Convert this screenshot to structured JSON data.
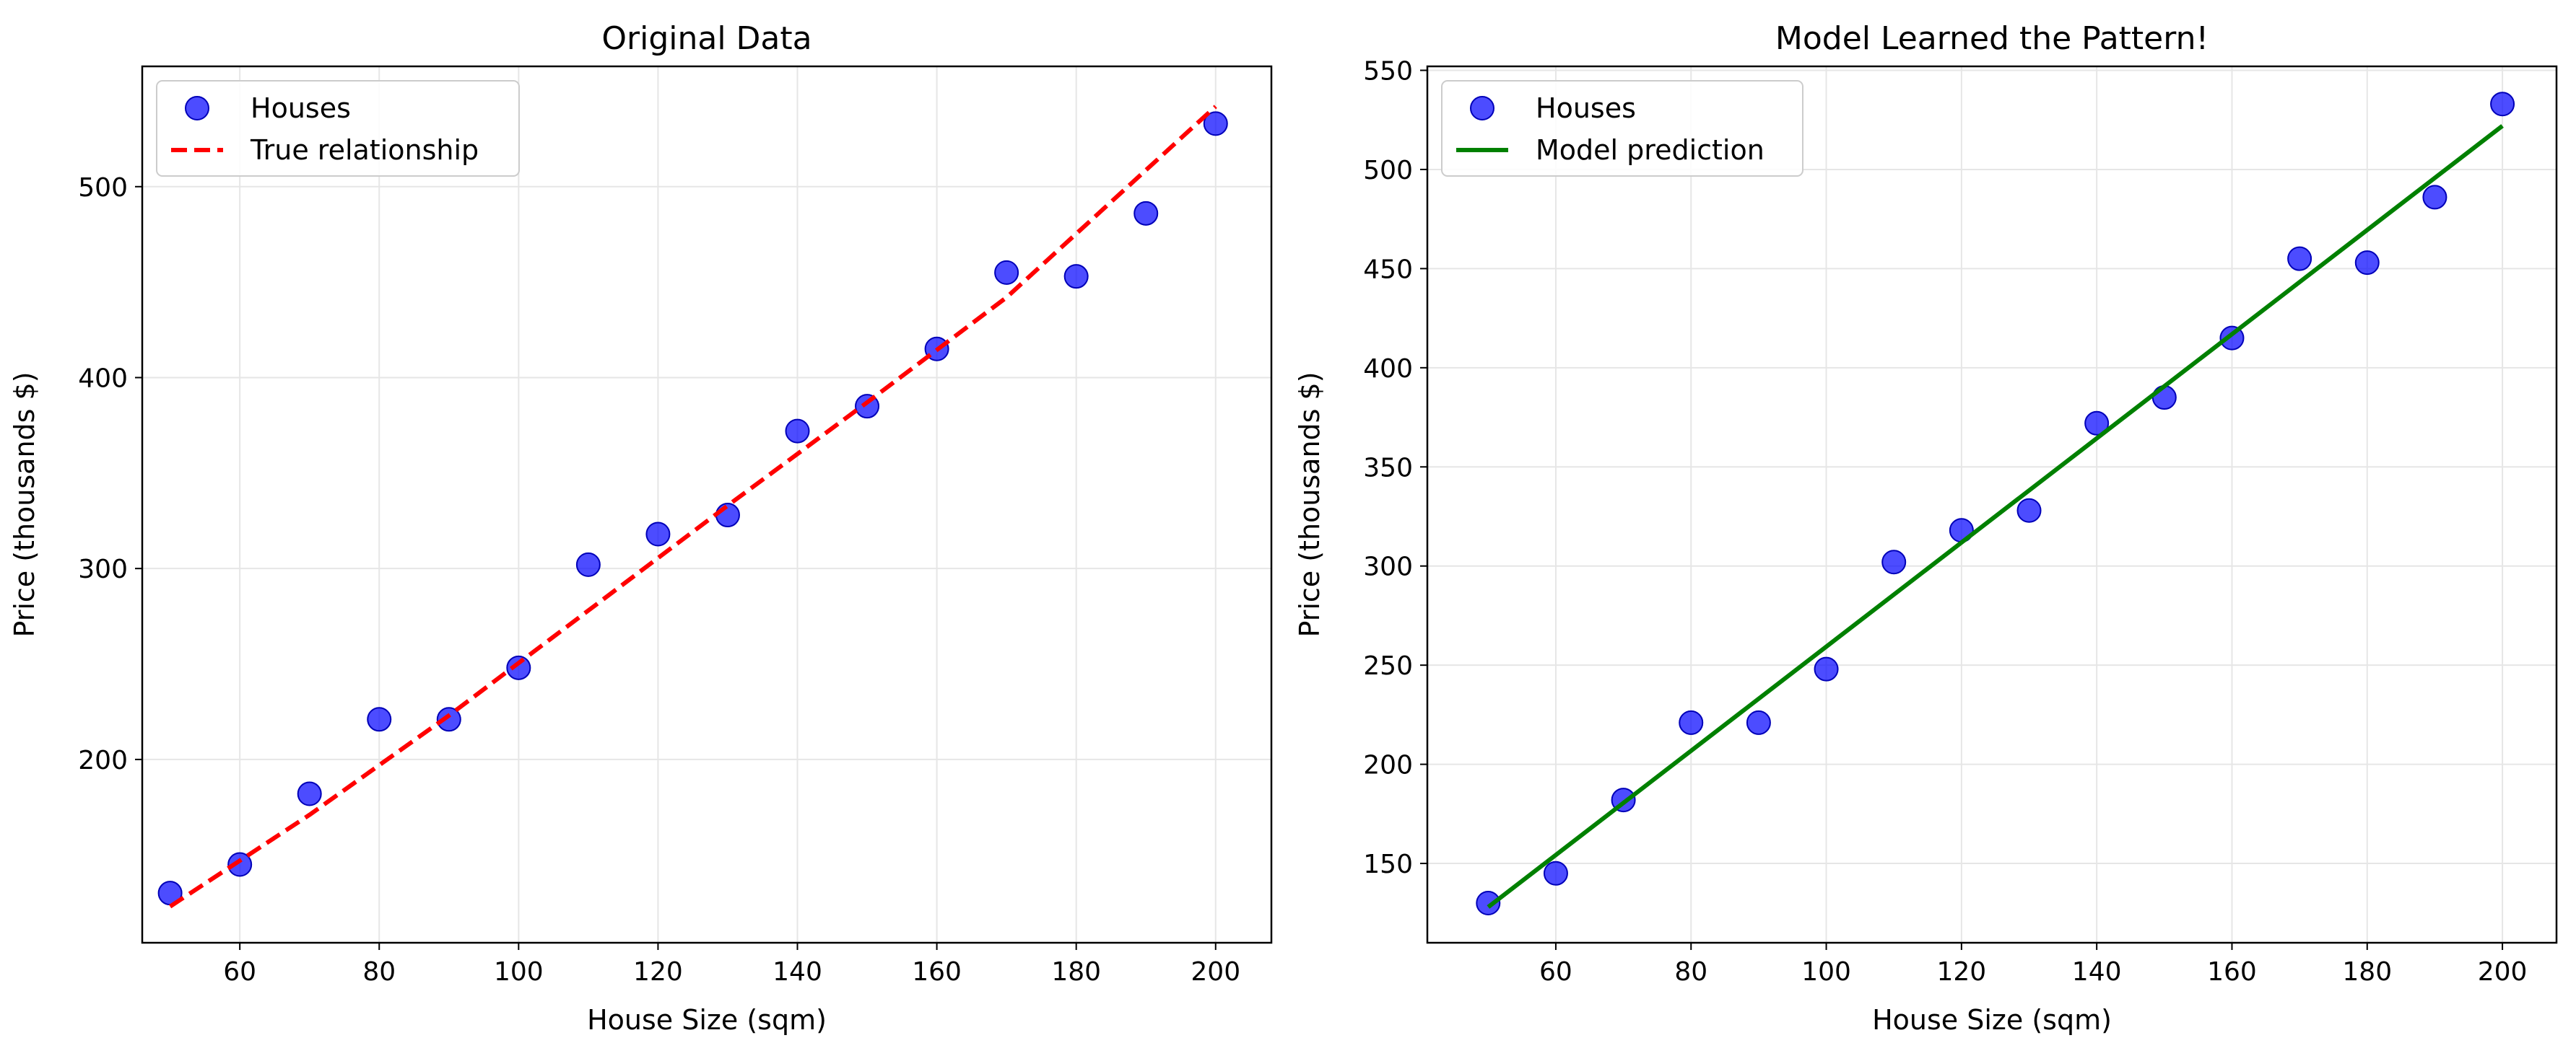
{
  "chart_data": [
    {
      "type": "scatter",
      "title": "Original Data",
      "xlabel": "House Size (sqm)",
      "ylabel": "Price (thousands $)",
      "xlim": [
        46,
        208
      ],
      "ylim": [
        104,
        563
      ],
      "xticks": [
        60,
        80,
        100,
        120,
        140,
        160,
        180,
        200
      ],
      "yticks": [
        200,
        300,
        400,
        500
      ],
      "grid": true,
      "legend_position": "top-left",
      "legend": [
        "Houses",
        "True relationship"
      ],
      "series": [
        {
          "name": "Houses",
          "kind": "scatter",
          "color": "#0000ff",
          "x": [
            50,
            60,
            70,
            80,
            90,
            100,
            110,
            120,
            130,
            140,
            150,
            160,
            170,
            180,
            190,
            200
          ],
          "y": [
            130,
            145,
            182,
            221,
            221,
            248,
            302,
            318,
            328,
            372,
            385,
            415,
            455,
            453,
            486,
            533
          ]
        },
        {
          "name": "True relationship",
          "kind": "line",
          "style": "dashed",
          "color": "#ff0000",
          "x": [
            50,
            70,
            90,
            110,
            130,
            150,
            170,
            200
          ],
          "y": [
            123,
            171,
            223,
            278,
            333,
            387,
            442,
            542
          ]
        }
      ]
    },
    {
      "type": "scatter",
      "title": "Model Learned the Pattern!",
      "xlabel": "House Size (sqm)",
      "ylabel": "Price (thousands $)",
      "xlim": [
        41,
        208
      ],
      "ylim": [
        110,
        552
      ],
      "xticks": [
        60,
        80,
        100,
        120,
        140,
        160,
        180,
        200
      ],
      "yticks": [
        150,
        200,
        250,
        300,
        350,
        400,
        450,
        500,
        550
      ],
      "grid": true,
      "legend_position": "top-left",
      "legend": [
        "Houses",
        "Model prediction"
      ],
      "series": [
        {
          "name": "Houses",
          "kind": "scatter",
          "color": "#0000ff",
          "x": [
            50,
            60,
            70,
            80,
            90,
            100,
            110,
            120,
            130,
            140,
            150,
            160,
            170,
            180,
            190,
            200
          ],
          "y": [
            130,
            145,
            182,
            221,
            221,
            248,
            302,
            318,
            328,
            372,
            385,
            415,
            455,
            453,
            486,
            533
          ]
        },
        {
          "name": "Model prediction",
          "kind": "line",
          "style": "solid",
          "color": "#008000",
          "x": [
            50,
            200
          ],
          "y": [
            128,
            522
          ]
        }
      ]
    }
  ]
}
